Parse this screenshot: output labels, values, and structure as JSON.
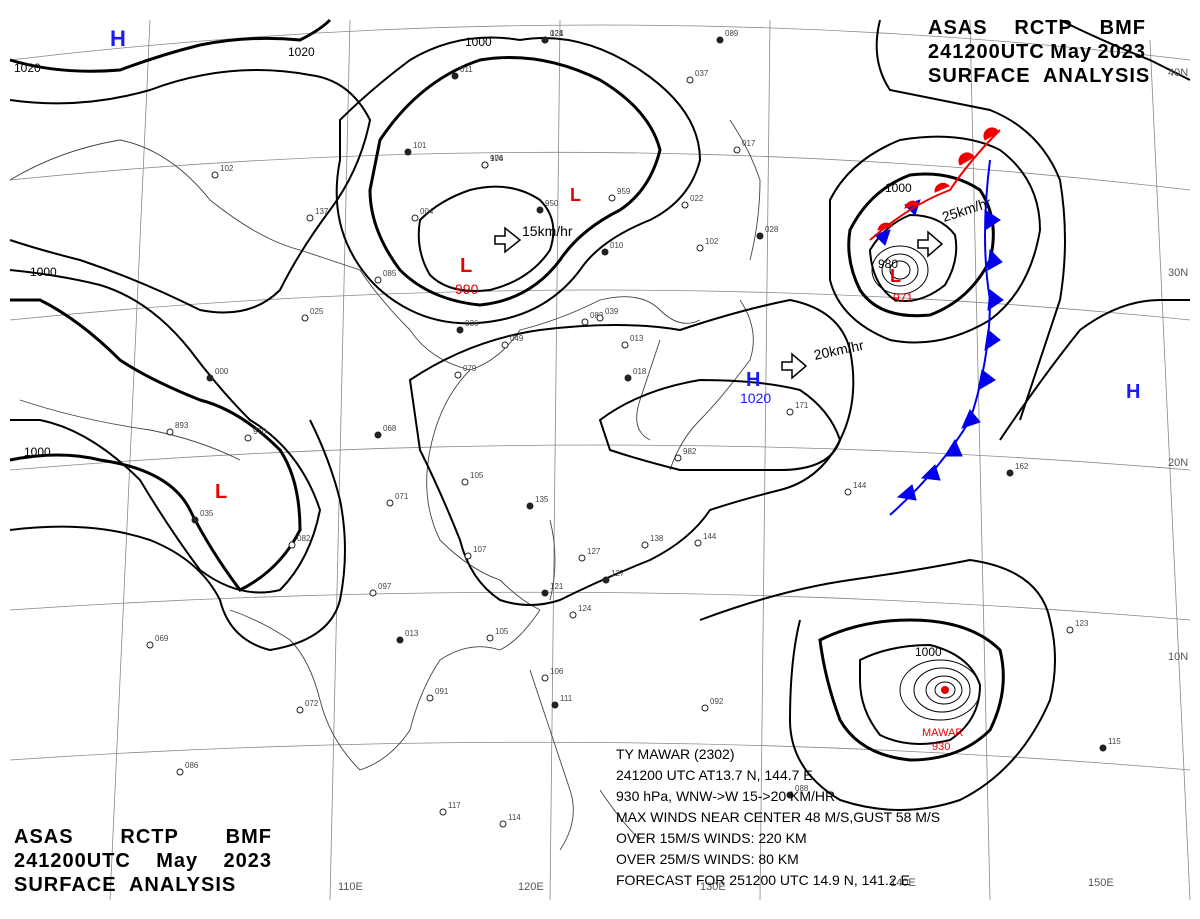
{
  "header": {
    "agency": [
      "ASAS",
      "RCTP",
      "BMF"
    ],
    "time": [
      "241200UTC",
      "May",
      "2023"
    ],
    "product": "SURFACE  ANALYSIS"
  },
  "colors": {
    "high": "#1a1aff",
    "low": "#e60000",
    "isobar": "#000000",
    "coast": "#444444",
    "grid": "#888888",
    "front_cold": "#0000ee",
    "front_warm": "#ee0000"
  },
  "lat_labels": [
    "40N",
    "30N",
    "20N",
    "10N"
  ],
  "lon_labels": [
    "110E",
    "120E",
    "130E",
    "140E",
    "150E"
  ],
  "isobar_labels": [
    "1020",
    "1020",
    "1000",
    "1000",
    "1000",
    "1000",
    "1000",
    "980"
  ],
  "pressure_centers": [
    {
      "type": "H",
      "value": ""
    },
    {
      "type": "L",
      "value": "990"
    },
    {
      "type": "L",
      "value": ""
    },
    {
      "type": "L",
      "value": ""
    },
    {
      "type": "L",
      "value": "971"
    },
    {
      "type": "H",
      "value": "1020"
    },
    {
      "type": "H",
      "value": ""
    }
  ],
  "motion": [
    "15km/hr",
    "25km/hr",
    "20km/hr"
  ],
  "typhoon": {
    "name": "MAWAR",
    "pressure": "930",
    "lines": [
      "TY  MAWAR  (2302)",
      "241200 UTC  AT13.7 N, 144.7 E",
      "930 hPa, WNW->W  15->20 KM/HR",
      "MAX WINDS NEAR CENTER 48 M/S,GUST 58 M/S",
      "OVER 15M/S WINDS: 220 KM",
      "OVER 25M/S WINDS: 80 KM",
      "FORECAST FOR 251200 UTC 14.9 N, 141.2 E"
    ]
  },
  "stations": [
    "021",
    "976",
    "959",
    "950",
    "004",
    "085",
    "011",
    "137",
    "102",
    "101",
    "037",
    "022",
    "010",
    "017",
    "102",
    "028",
    "082",
    "049",
    "036",
    "013",
    "079",
    "000",
    "893",
    "970",
    "068",
    "071",
    "105",
    "135",
    "107",
    "127",
    "121",
    "124",
    "138",
    "127",
    "144",
    "171",
    "162",
    "144",
    "105",
    "013",
    "072",
    "091",
    "088",
    "117",
    "114",
    "115",
    "069",
    "086",
    "035",
    "082",
    "097",
    "089",
    "025",
    "039",
    "018",
    "982",
    "106",
    "111",
    "092",
    "123",
    "124",
    "104"
  ]
}
